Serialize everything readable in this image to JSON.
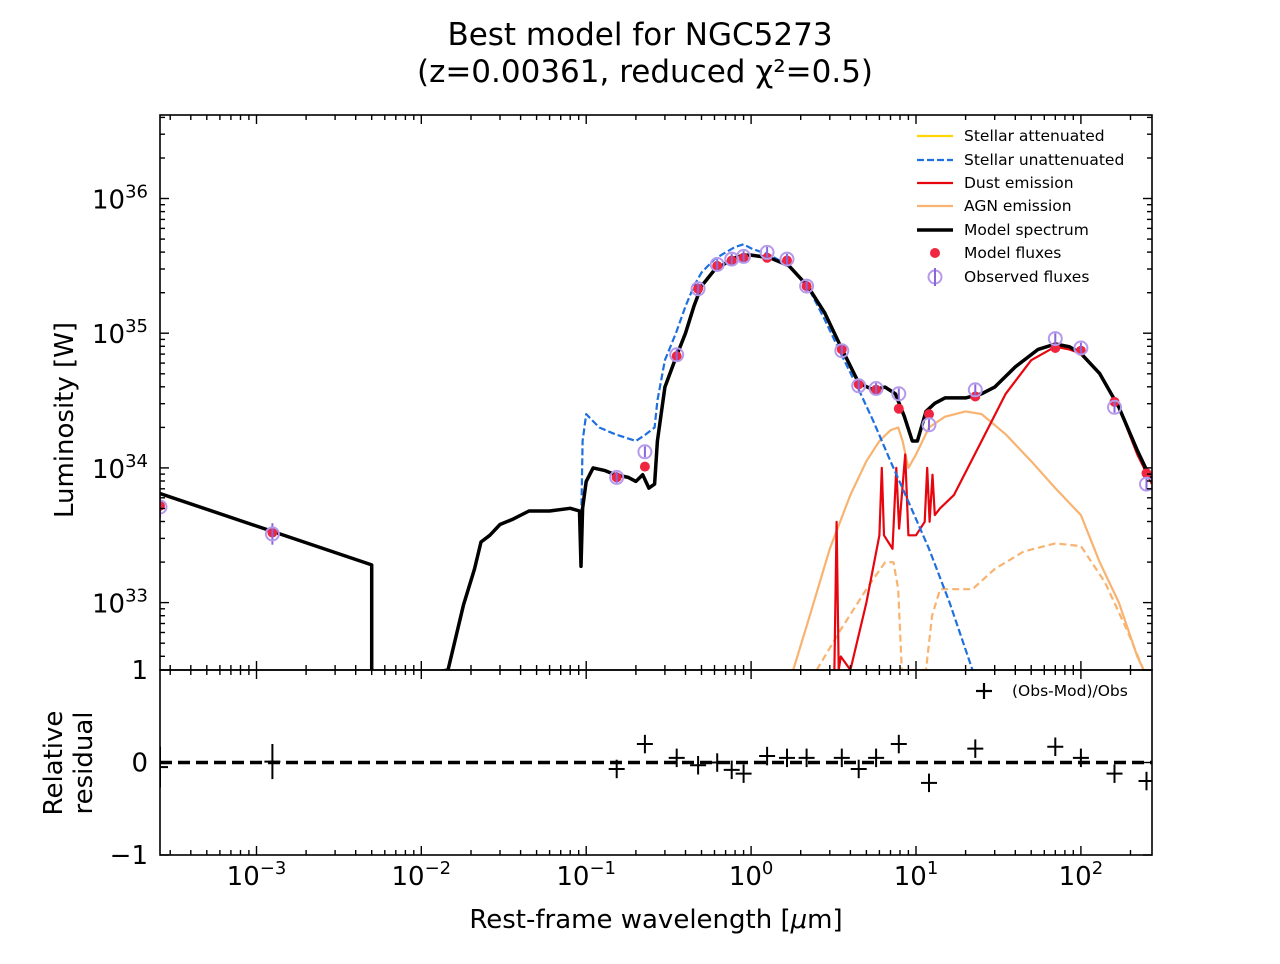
{
  "chart_data": {
    "type": "line",
    "title": "Best model for NGC5273",
    "subtitle": "(z=0.00361, reduced χ²=0.5)",
    "xlabel_prefix": "Rest-frame wavelength [",
    "xlabel_mu": "μ",
    "xlabel_suffix": "m]",
    "ylabel": "Luminosity [W]",
    "residual_ylabel_line1": "Relative",
    "residual_ylabel_line2": "residual",
    "xscale": "log",
    "xlim": [
      0.00026,
      270
    ],
    "upper_ylim_log": [
      32.5,
      36.62
    ],
    "residual_ylim": [
      -1,
      1
    ],
    "x_ticks": [
      {
        "value": 0.001,
        "base": "10",
        "exp": "−3"
      },
      {
        "value": 0.01,
        "base": "10",
        "exp": "−2"
      },
      {
        "value": 0.1,
        "base": "10",
        "exp": "−1"
      },
      {
        "value": 1,
        "base": "10",
        "exp": "0"
      },
      {
        "value": 10,
        "base": "10",
        "exp": "1"
      },
      {
        "value": 100,
        "base": "10",
        "exp": "2"
      }
    ],
    "y_ticks": [
      {
        "value": 33,
        "base": "10",
        "exp": "33"
      },
      {
        "value": 34,
        "base": "10",
        "exp": "34"
      },
      {
        "value": 35,
        "base": "10",
        "exp": "35"
      },
      {
        "value": 36,
        "base": "10",
        "exp": "36"
      }
    ],
    "residual_ticks": [
      {
        "value": 1,
        "label": "1"
      },
      {
        "value": 0,
        "label": "0"
      },
      {
        "value": -1,
        "label": "−1"
      }
    ],
    "legend": [
      {
        "key": "stellar_att",
        "label": "Stellar attenuated",
        "color": "#FFD700",
        "style": "solid"
      },
      {
        "key": "stellar_unatt",
        "label": "Stellar unattenuated",
        "color": "#1E6FE0",
        "style": "dashed"
      },
      {
        "key": "dust",
        "label": "Dust emission",
        "color": "#E8060E",
        "style": "solid"
      },
      {
        "key": "agn",
        "label": "AGN emission",
        "color": "#F8B370",
        "style": "solid"
      },
      {
        "key": "model",
        "label": "Model spectrum",
        "color": "#000000",
        "style": "solid"
      },
      {
        "key": "model_fluxes",
        "label": "Model fluxes",
        "color": "#F02640",
        "style": "marker"
      },
      {
        "key": "observed_fluxes",
        "label": "Observed fluxes",
        "color": "#B49AEC",
        "style": "marker"
      }
    ],
    "residual_legend": "(Obs-Mod)/Obs",
    "series": [
      {
        "name": "Model spectrum",
        "color": "#000000",
        "points": [
          [
            0.00026,
            33.81
          ],
          [
            0.005,
            33.28
          ],
          [
            0.005,
            32.4
          ],
          [
            0.0145,
            32.5
          ],
          [
            0.018,
            32.98
          ],
          [
            0.021,
            33.25
          ],
          [
            0.023,
            33.45
          ],
          [
            0.026,
            33.5
          ],
          [
            0.03,
            33.58
          ],
          [
            0.036,
            33.62
          ],
          [
            0.045,
            33.68
          ],
          [
            0.06,
            33.68
          ],
          [
            0.08,
            33.7
          ],
          [
            0.091,
            33.68
          ],
          [
            0.093,
            33.27
          ],
          [
            0.095,
            33.7
          ],
          [
            0.1,
            33.9
          ],
          [
            0.11,
            34.0
          ],
          [
            0.13,
            33.98
          ],
          [
            0.15,
            33.95
          ],
          [
            0.18,
            33.93
          ],
          [
            0.2,
            33.9
          ],
          [
            0.22,
            33.95
          ],
          [
            0.24,
            33.85
          ],
          [
            0.26,
            33.88
          ],
          [
            0.27,
            34.2
          ],
          [
            0.3,
            34.6
          ],
          [
            0.35,
            34.82
          ],
          [
            0.4,
            35.0
          ],
          [
            0.45,
            35.2
          ],
          [
            0.5,
            35.35
          ],
          [
            0.6,
            35.47
          ],
          [
            0.7,
            35.52
          ],
          [
            0.8,
            35.56
          ],
          [
            0.9,
            35.58
          ],
          [
            1.0,
            35.58
          ],
          [
            1.3,
            35.56
          ],
          [
            1.7,
            35.5
          ],
          [
            2.2,
            35.35
          ],
          [
            2.8,
            35.15
          ],
          [
            3.5,
            34.9
          ],
          [
            4.5,
            34.63
          ],
          [
            5.5,
            34.58
          ],
          [
            6.5,
            34.6
          ],
          [
            7.5,
            34.55
          ],
          [
            8.5,
            34.38
          ],
          [
            9.5,
            34.2
          ],
          [
            10.2,
            34.2
          ],
          [
            11.5,
            34.42
          ],
          [
            13,
            34.48
          ],
          [
            15,
            34.52
          ],
          [
            20,
            34.52
          ],
          [
            25,
            34.55
          ],
          [
            30,
            34.6
          ],
          [
            40,
            34.75
          ],
          [
            55,
            34.88
          ],
          [
            70,
            34.92
          ],
          [
            85,
            34.9
          ],
          [
            100,
            34.85
          ],
          [
            130,
            34.7
          ],
          [
            170,
            34.45
          ],
          [
            220,
            34.13
          ],
          [
            270,
            33.9
          ]
        ]
      },
      {
        "name": "Stellar unattenuated",
        "color": "#1E6FE0",
        "points": [
          [
            0.093,
            33.5
          ],
          [
            0.095,
            34.2
          ],
          [
            0.1,
            34.4
          ],
          [
            0.12,
            34.3
          ],
          [
            0.15,
            34.25
          ],
          [
            0.2,
            34.2
          ],
          [
            0.23,
            34.25
          ],
          [
            0.26,
            34.3
          ],
          [
            0.27,
            34.5
          ],
          [
            0.3,
            34.8
          ],
          [
            0.35,
            35.0
          ],
          [
            0.4,
            35.2
          ],
          [
            0.45,
            35.35
          ],
          [
            0.5,
            35.45
          ],
          [
            0.6,
            35.55
          ],
          [
            0.7,
            35.6
          ],
          [
            0.8,
            35.64
          ],
          [
            0.9,
            35.66
          ],
          [
            1.0,
            35.63
          ],
          [
            1.3,
            35.58
          ],
          [
            1.7,
            35.5
          ],
          [
            2.2,
            35.35
          ],
          [
            2.8,
            35.1
          ],
          [
            3.5,
            34.85
          ],
          [
            4.5,
            34.58
          ],
          [
            5.5,
            34.35
          ],
          [
            7,
            34.05
          ],
          [
            9,
            33.75
          ],
          [
            12,
            33.4
          ],
          [
            16,
            33.0
          ],
          [
            22,
            32.5
          ]
        ]
      },
      {
        "name": "Dust emission",
        "color": "#E8060E",
        "points": [
          [
            3.2,
            32.5
          ],
          [
            3.3,
            33.6
          ],
          [
            3.4,
            32.5
          ],
          [
            3.5,
            32.6
          ],
          [
            4,
            32.5
          ],
          [
            5,
            33.0
          ],
          [
            6,
            33.5
          ],
          [
            6.2,
            34.0
          ],
          [
            6.4,
            33.5
          ],
          [
            7.2,
            33.4
          ],
          [
            7.6,
            34.0
          ],
          [
            7.9,
            33.55
          ],
          [
            8.6,
            34.1
          ],
          [
            9,
            33.5
          ],
          [
            10,
            33.5
          ],
          [
            11.3,
            33.6
          ],
          [
            11.7,
            34.0
          ],
          [
            12.1,
            33.6
          ],
          [
            12.6,
            33.95
          ],
          [
            13,
            33.65
          ],
          [
            14,
            33.7
          ],
          [
            17,
            33.8
          ],
          [
            25,
            34.2
          ],
          [
            35,
            34.55
          ],
          [
            50,
            34.8
          ],
          [
            70,
            34.9
          ],
          [
            85,
            34.88
          ],
          [
            100,
            34.85
          ],
          [
            130,
            34.7
          ],
          [
            170,
            34.45
          ],
          [
            220,
            34.1
          ],
          [
            270,
            33.88
          ]
        ]
      },
      {
        "name": "AGN emission",
        "color": "#F8B370",
        "points": [
          [
            1.8,
            32.5
          ],
          [
            2.2,
            32.85
          ],
          [
            3,
            33.4
          ],
          [
            4,
            33.8
          ],
          [
            5,
            34.05
          ],
          [
            6,
            34.2
          ],
          [
            7,
            34.28
          ],
          [
            7.8,
            34.3
          ],
          [
            8.3,
            34.2
          ],
          [
            9,
            34.0
          ],
          [
            10,
            34.1
          ],
          [
            12,
            34.3
          ],
          [
            15,
            34.38
          ],
          [
            20,
            34.42
          ],
          [
            25,
            34.4
          ],
          [
            35,
            34.25
          ],
          [
            50,
            34.05
          ],
          [
            70,
            33.85
          ],
          [
            100,
            33.65
          ],
          [
            130,
            33.3
          ],
          [
            170,
            33.0
          ],
          [
            220,
            32.6
          ],
          [
            240,
            32.5
          ]
        ]
      },
      {
        "name": "AGN emission (dashed)",
        "color": "#F8B370",
        "points": [
          [
            2.5,
            32.5
          ],
          [
            3.5,
            32.8
          ],
          [
            5,
            33.1
          ],
          [
            6.5,
            33.3
          ],
          [
            7.3,
            33.3
          ],
          [
            7.8,
            33.1
          ],
          [
            8.2,
            32.5
          ],
          [
            11.5,
            32.5
          ],
          [
            12.5,
            32.9
          ],
          [
            14,
            33.1
          ],
          [
            17,
            33.1
          ],
          [
            22,
            33.1
          ],
          [
            30,
            33.25
          ],
          [
            45,
            33.38
          ],
          [
            70,
            33.44
          ],
          [
            100,
            33.42
          ],
          [
            140,
            33.15
          ],
          [
            190,
            32.8
          ],
          [
            240,
            32.5
          ]
        ]
      }
    ],
    "model_fluxes": [
      [
        0.00026,
        33.72
      ],
      [
        0.00125,
        33.52
      ],
      [
        0.153,
        33.93
      ],
      [
        0.227,
        34.01
      ],
      [
        0.354,
        34.83
      ],
      [
        0.477,
        35.33
      ],
      [
        0.623,
        35.5
      ],
      [
        0.763,
        35.54
      ],
      [
        0.9,
        35.56
      ],
      [
        1.25,
        35.56
      ],
      [
        1.65,
        35.54
      ],
      [
        2.17,
        35.35
      ],
      [
        3.55,
        34.88
      ],
      [
        4.49,
        34.62
      ],
      [
        5.73,
        34.58
      ],
      [
        7.87,
        34.44
      ],
      [
        12.0,
        34.4
      ],
      [
        22.9,
        34.53
      ],
      [
        70,
        34.89
      ],
      [
        100,
        34.87
      ],
      [
        160,
        34.49
      ],
      [
        250,
        33.96
      ]
    ],
    "observed_fluxes": [
      [
        0.00026,
        33.71,
        0.08
      ],
      [
        0.00125,
        33.51,
        0.08
      ],
      [
        0.153,
        33.93,
        0.04
      ],
      [
        0.227,
        34.12,
        0.04
      ],
      [
        0.354,
        34.84,
        0.04
      ],
      [
        0.477,
        35.33,
        0.04
      ],
      [
        0.623,
        35.51,
        0.04
      ],
      [
        0.763,
        35.55,
        0.04
      ],
      [
        0.9,
        35.57,
        0.04
      ],
      [
        1.25,
        35.6,
        0.04
      ],
      [
        1.65,
        35.55,
        0.04
      ],
      [
        2.17,
        35.35,
        0.04
      ],
      [
        3.55,
        34.87,
        0.04
      ],
      [
        4.49,
        34.61,
        0.04
      ],
      [
        5.73,
        34.59,
        0.04
      ],
      [
        7.87,
        34.55,
        0.04
      ],
      [
        12.0,
        34.32,
        0.04
      ],
      [
        22.9,
        34.58,
        0.04
      ],
      [
        70,
        34.96,
        0.04
      ],
      [
        100,
        34.89,
        0.04
      ],
      [
        160,
        34.45,
        0.04
      ],
      [
        250,
        33.88,
        0.04
      ]
    ],
    "residuals": [
      [
        0.00026,
        -0.05,
        0.22
      ],
      [
        0.00125,
        0.01,
        0.19
      ],
      [
        0.153,
        -0.07,
        0.1
      ],
      [
        0.227,
        0.2,
        0.1
      ],
      [
        0.354,
        0.05,
        0.1
      ],
      [
        0.477,
        -0.03,
        0.1
      ],
      [
        0.623,
        0.0,
        0.1
      ],
      [
        0.763,
        -0.08,
        0.1
      ],
      [
        0.9,
        -0.12,
        0.1
      ],
      [
        1.25,
        0.07,
        0.1
      ],
      [
        1.65,
        0.05,
        0.1
      ],
      [
        2.17,
        0.05,
        0.1
      ],
      [
        3.55,
        0.05,
        0.1
      ],
      [
        4.49,
        -0.07,
        0.1
      ],
      [
        5.73,
        0.05,
        0.1
      ],
      [
        7.87,
        0.2,
        0.1
      ],
      [
        12.0,
        -0.22,
        0.1
      ],
      [
        22.9,
        0.15,
        0.1
      ],
      [
        70,
        0.17,
        0.1
      ],
      [
        100,
        0.05,
        0.1
      ],
      [
        160,
        -0.12,
        0.1
      ],
      [
        250,
        -0.2,
        0.1
      ]
    ]
  }
}
